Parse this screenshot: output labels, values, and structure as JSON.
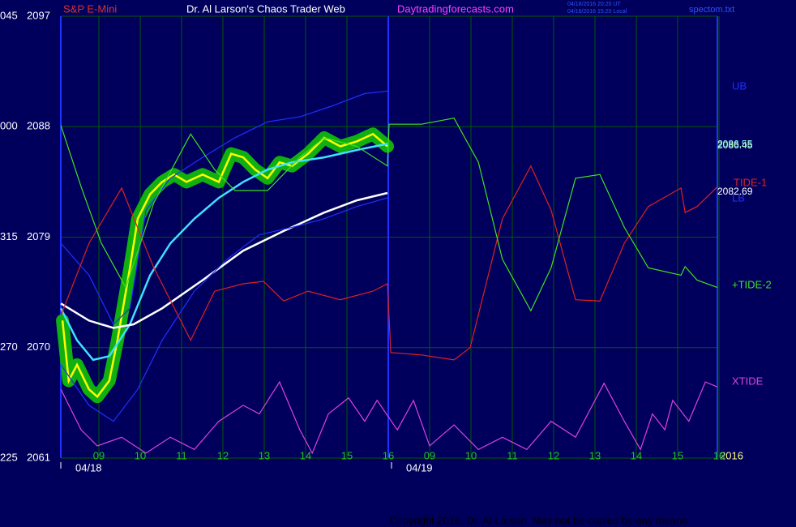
{
  "chart_data": {
    "type": "line",
    "instrument": "S&P E-Mini",
    "title": "Dr. Al Larson's Chaos Trader Web",
    "site": "Daytradingforecasts.com",
    "timestamp_ut": "04/18/2016 20:20 UT",
    "timestamp_local": "04/18/2016 15:20 Local",
    "file": "spectom.txt",
    "year_label": "2016",
    "copyright": "Copyright 2016, Dr. Al Larson. May not be copied by any means.",
    "xlim": [
      0,
      16
    ],
    "xticks": [
      {
        "value": 1,
        "label": "09"
      },
      {
        "value": 2,
        "label": "10"
      },
      {
        "value": 3,
        "label": "11"
      },
      {
        "value": 4,
        "label": "12"
      },
      {
        "value": 5,
        "label": "13"
      },
      {
        "value": 6,
        "label": "14"
      },
      {
        "value": 7,
        "label": "15"
      },
      {
        "value": 8,
        "label": "16"
      },
      {
        "value": 9,
        "label": "09"
      },
      {
        "value": 10,
        "label": "10"
      },
      {
        "value": 11,
        "label": "11"
      },
      {
        "value": 12,
        "label": "12"
      },
      {
        "value": 13,
        "label": "13"
      },
      {
        "value": 14,
        "label": "14"
      },
      {
        "value": 15,
        "label": "15"
      },
      {
        "value": 16,
        "label": "16"
      }
    ],
    "date_ticks": [
      {
        "value": 0,
        "label": "04/18"
      },
      {
        "value": 8,
        "label": "04/19"
      }
    ],
    "ylim": [
      2061,
      2097
    ],
    "yticks": [
      2061,
      2070,
      2079,
      2088,
      2097
    ],
    "angle_ticks": [
      {
        "value": 2061,
        "label": "225"
      },
      {
        "value": 2070,
        "label": "270"
      },
      {
        "value": 2079,
        "label": "315"
      },
      {
        "value": 2088,
        "label": "000"
      },
      {
        "value": 2097,
        "label": "045"
      }
    ],
    "grid": true,
    "series": [
      {
        "color": "#ffff00",
        "halo_color": "#10b010",
        "x": [
          0.12,
          0.27,
          0.47,
          0.76,
          0.96,
          1.25,
          1.45,
          1.75,
          1.94,
          2.24,
          2.53,
          2.82,
          3.12,
          3.51,
          3.9,
          4.2,
          4.49,
          4.78,
          5.08,
          5.37,
          5.67,
          6.06,
          6.45,
          6.84,
          7.24,
          7.63,
          7.98
        ],
        "values": [
          2072.2,
          2067.3,
          2068.6,
          2066.6,
          2066.0,
          2067.3,
          2070.6,
          2076.5,
          2080.5,
          2082.5,
          2083.5,
          2084.1,
          2083.5,
          2084.1,
          2083.5,
          2085.8,
          2085.5,
          2084.5,
          2083.8,
          2085.1,
          2084.8,
          2085.8,
          2087.1,
          2086.4,
          2086.8,
          2087.4,
          2086.4
        ]
      },
      {
        "color": "#40e0ff",
        "x": [
          0.08,
          0.47,
          0.86,
          1.25,
          1.75,
          2.24,
          2.73,
          3.31,
          3.9,
          4.49,
          5.08,
          5.67,
          6.45,
          7.24,
          7.98
        ],
        "values": [
          2073.2,
          2070.6,
          2069.0,
          2069.3,
          2071.9,
          2075.9,
          2078.5,
          2080.5,
          2082.2,
          2083.5,
          2084.5,
          2085.1,
          2085.5,
          2086.1,
          2086.6
        ]
      },
      {
        "color": "#ffffff",
        "x": [
          0.08,
          0.76,
          1.35,
          1.84,
          2.53,
          3.51,
          4.49,
          5.47,
          6.45,
          7.24,
          7.98
        ],
        "values": [
          2073.6,
          2072.2,
          2071.6,
          2071.9,
          2073.2,
          2075.5,
          2077.9,
          2079.5,
          2081.0,
          2082.0,
          2082.6
        ]
      },
      {
        "name": "UB",
        "color": "#2030ff",
        "x": [
          0.08,
          0.76,
          1.35,
          1.75,
          2.14,
          2.73,
          3.51,
          4.29,
          5.08,
          5.86,
          6.65,
          7.43,
          7.98
        ],
        "values": [
          2078.5,
          2075.9,
          2071.9,
          2073.2,
          2081.2,
          2083.8,
          2085.5,
          2087.1,
          2088.4,
          2088.8,
          2089.7,
          2090.7,
          2090.9
        ]
      },
      {
        "name": "LB",
        "color": "#2030ff",
        "x": [
          0.08,
          0.76,
          1.35,
          1.94,
          2.53,
          3.31,
          4.1,
          4.88,
          5.67,
          6.45,
          7.24,
          7.98
        ],
        "values": [
          2068.6,
          2065.3,
          2064.0,
          2066.6,
          2070.6,
          2074.6,
          2077.2,
          2079.2,
          2079.8,
          2080.5,
          2081.5,
          2082.2
        ]
      },
      {
        "name": "TIDE-1",
        "color": "#e02020",
        "x": [
          0.08,
          0.76,
          1.55,
          2.33,
          3.22,
          3.8,
          4.49,
          4.98,
          5.47,
          6.06,
          6.84,
          7.63,
          7.98,
          8.06,
          8.8,
          9.59,
          9.98,
          10.76,
          11.45,
          11.94,
          12.53,
          13.12,
          13.71,
          14.29,
          15.08,
          15.18,
          15.47,
          15.96
        ],
        "values": [
          2072.6,
          2078.5,
          2083.0,
          2076.5,
          2070.6,
          2074.6,
          2075.2,
          2075.4,
          2073.8,
          2074.6,
          2073.9,
          2074.6,
          2075.2,
          2069.6,
          2069.4,
          2069.0,
          2070.0,
          2080.5,
          2084.8,
          2081.2,
          2073.9,
          2073.8,
          2078.5,
          2081.5,
          2083.0,
          2081.0,
          2081.5,
          2083.1
        ]
      },
      {
        "name": "+TIDE-2",
        "color": "#40e020",
        "x": [
          0.08,
          0.57,
          1.06,
          1.65,
          2.33,
          3.22,
          3.8,
          4.29,
          5.08,
          5.86,
          6.45,
          7.24,
          7.98,
          8.02,
          8.8,
          9.59,
          10.18,
          10.76,
          11.45,
          11.94,
          12.53,
          13.12,
          13.71,
          14.29,
          15.08,
          15.18,
          15.47,
          15.96
        ],
        "values": [
          2088.1,
          2083.1,
          2078.5,
          2074.9,
          2081.8,
          2087.4,
          2084.5,
          2082.8,
          2082.8,
          2085.5,
          2087.1,
          2086.4,
          2084.8,
          2088.2,
          2088.2,
          2088.7,
          2085.1,
          2077.2,
          2073.0,
          2076.5,
          2083.8,
          2084.1,
          2079.8,
          2076.5,
          2075.9,
          2076.6,
          2075.5,
          2074.9
        ]
      },
      {
        "name": "XTIDE",
        "color": "#e040e0",
        "x": [
          0.08,
          0.57,
          0.96,
          1.55,
          2.14,
          2.73,
          3.31,
          3.9,
          4.49,
          4.88,
          5.37,
          5.86,
          6.16,
          6.55,
          7.04,
          7.43,
          7.73,
          8.22,
          8.61,
          9.0,
          9.59,
          10.18,
          10.76,
          11.35,
          11.94,
          12.53,
          13.22,
          13.71,
          14.1,
          14.39,
          14.69,
          14.88,
          15.27,
          15.67,
          15.96
        ],
        "values": [
          2066.6,
          2063.3,
          2062.0,
          2062.7,
          2061.4,
          2062.7,
          2061.7,
          2064.0,
          2065.3,
          2064.6,
          2067.2,
          2063.3,
          2061.4,
          2064.6,
          2065.9,
          2064.0,
          2065.7,
          2063.3,
          2065.7,
          2062.0,
          2063.7,
          2061.7,
          2062.7,
          2061.7,
          2064.0,
          2062.7,
          2067.1,
          2064.0,
          2061.7,
          2064.6,
          2063.3,
          2065.7,
          2064.0,
          2067.2,
          2066.8
        ]
      }
    ],
    "annotations": [
      {
        "text": "2086.55",
        "y": 2086.55,
        "color": "#80ffff"
      },
      {
        "text": "2086.45",
        "y": 2086.45,
        "color": "#c0ffc0"
      },
      {
        "text": "2082.69",
        "y": 2082.69,
        "color": "#ffffff"
      }
    ]
  }
}
